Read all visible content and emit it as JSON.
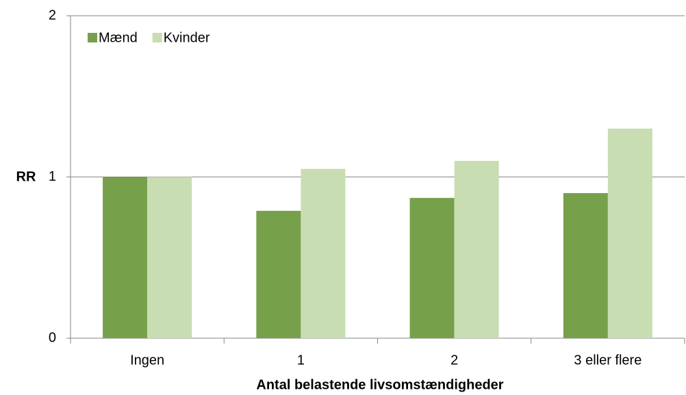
{
  "chart_data": {
    "type": "bar",
    "categories": [
      "Ingen",
      "1",
      "2",
      "3 eller flere"
    ],
    "series": [
      {
        "name": "Mænd",
        "color": "#77a04b",
        "values": [
          1.0,
          0.79,
          0.87,
          0.9
        ]
      },
      {
        "name": "Kvinder",
        "color": "#c9ddb3",
        "values": [
          1.0,
          1.05,
          1.1,
          1.3
        ]
      }
    ],
    "ylabel": "RR",
    "xlabel": "Antal belastende livsomstændigheder",
    "ylim": [
      0,
      2
    ],
    "yticks": [
      0,
      1,
      2
    ],
    "grid": true,
    "legend": "top-left"
  }
}
